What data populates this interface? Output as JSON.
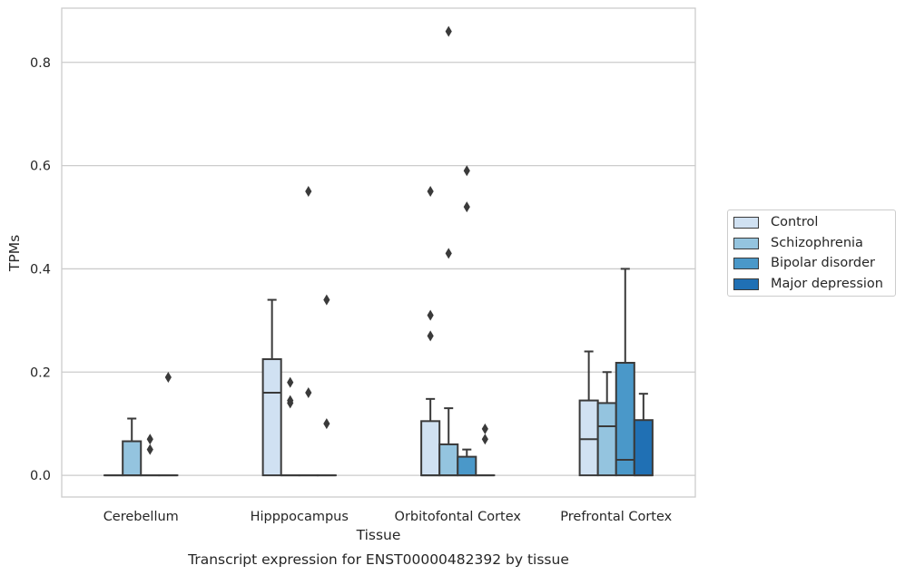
{
  "chart_data": {
    "type": "box",
    "title": "Transcript expression for ENST00000482392 by tissue",
    "xlabel": "Tissue",
    "ylabel": "TPMs",
    "ylim": [
      -0.042,
      0.905
    ],
    "yticks": [
      "0.0",
      "0.2",
      "0.4",
      "0.6",
      "0.8"
    ],
    "ytick_values": [
      0.0,
      0.2,
      0.4,
      0.6,
      0.8
    ],
    "grid": "horizontal",
    "legend_placement": "right",
    "categories": [
      "Cerebellum",
      "Hipppocampus",
      "Orbitofontal Cortex",
      "Prefrontal Cortex"
    ],
    "series": [
      {
        "name": "Control",
        "color": "#d0e1f2",
        "boxes": [
          {
            "q1": 0.0,
            "median": 0.0,
            "q3": 0.0,
            "whislo": 0.0,
            "whishi": 0.0,
            "fliers": []
          },
          {
            "q1": 0.0,
            "median": 0.16,
            "q3": 0.225,
            "whislo": 0.0,
            "whishi": 0.34,
            "fliers": []
          },
          {
            "q1": 0.0,
            "median": 0.0,
            "q3": 0.105,
            "whislo": 0.0,
            "whishi": 0.148,
            "fliers": [
              0.27,
              0.31,
              0.55
            ]
          },
          {
            "q1": 0.0,
            "median": 0.07,
            "q3": 0.145,
            "whislo": 0.0,
            "whishi": 0.24,
            "fliers": []
          }
        ]
      },
      {
        "name": "Schizophrenia",
        "color": "#94c4df",
        "boxes": [
          {
            "q1": 0.0,
            "median": 0.0,
            "q3": 0.066,
            "whislo": 0.0,
            "whishi": 0.11,
            "fliers": []
          },
          {
            "q1": 0.0,
            "median": 0.0,
            "q3": 0.0,
            "whislo": 0.0,
            "whishi": 0.0,
            "fliers": [
              0.14,
              0.145,
              0.18
            ]
          },
          {
            "q1": 0.0,
            "median": 0.0,
            "q3": 0.06,
            "whislo": 0.0,
            "whishi": 0.13,
            "fliers": [
              0.43,
              0.86
            ]
          },
          {
            "q1": 0.0,
            "median": 0.095,
            "q3": 0.14,
            "whislo": 0.0,
            "whishi": 0.2,
            "fliers": []
          }
        ]
      },
      {
        "name": "Bipolar disorder",
        "color": "#4a98c9",
        "boxes": [
          {
            "q1": 0.0,
            "median": 0.0,
            "q3": 0.0,
            "whislo": 0.0,
            "whishi": 0.0,
            "fliers": [
              0.05,
              0.07
            ]
          },
          {
            "q1": 0.0,
            "median": 0.0,
            "q3": 0.0,
            "whislo": 0.0,
            "whishi": 0.0,
            "fliers": [
              0.16,
              0.55
            ]
          },
          {
            "q1": 0.0,
            "median": 0.0,
            "q3": 0.036,
            "whislo": 0.0,
            "whishi": 0.05,
            "fliers": [
              0.52,
              0.59
            ]
          },
          {
            "q1": 0.0,
            "median": 0.03,
            "q3": 0.218,
            "whislo": 0.0,
            "whishi": 0.4,
            "fliers": []
          }
        ]
      },
      {
        "name": "Major depression",
        "color": "#2070b4",
        "boxes": [
          {
            "q1": 0.0,
            "median": 0.0,
            "q3": 0.0,
            "whislo": 0.0,
            "whishi": 0.0,
            "fliers": [
              0.19
            ]
          },
          {
            "q1": 0.0,
            "median": 0.0,
            "q3": 0.0,
            "whislo": 0.0,
            "whishi": 0.0,
            "fliers": [
              0.1,
              0.34
            ]
          },
          {
            "q1": 0.0,
            "median": 0.0,
            "q3": 0.0,
            "whislo": 0.0,
            "whishi": 0.0,
            "fliers": [
              0.07,
              0.09
            ]
          },
          {
            "q1": 0.0,
            "median": 0.0,
            "q3": 0.107,
            "whislo": 0.0,
            "whishi": 0.158,
            "fliers": []
          }
        ]
      }
    ]
  }
}
